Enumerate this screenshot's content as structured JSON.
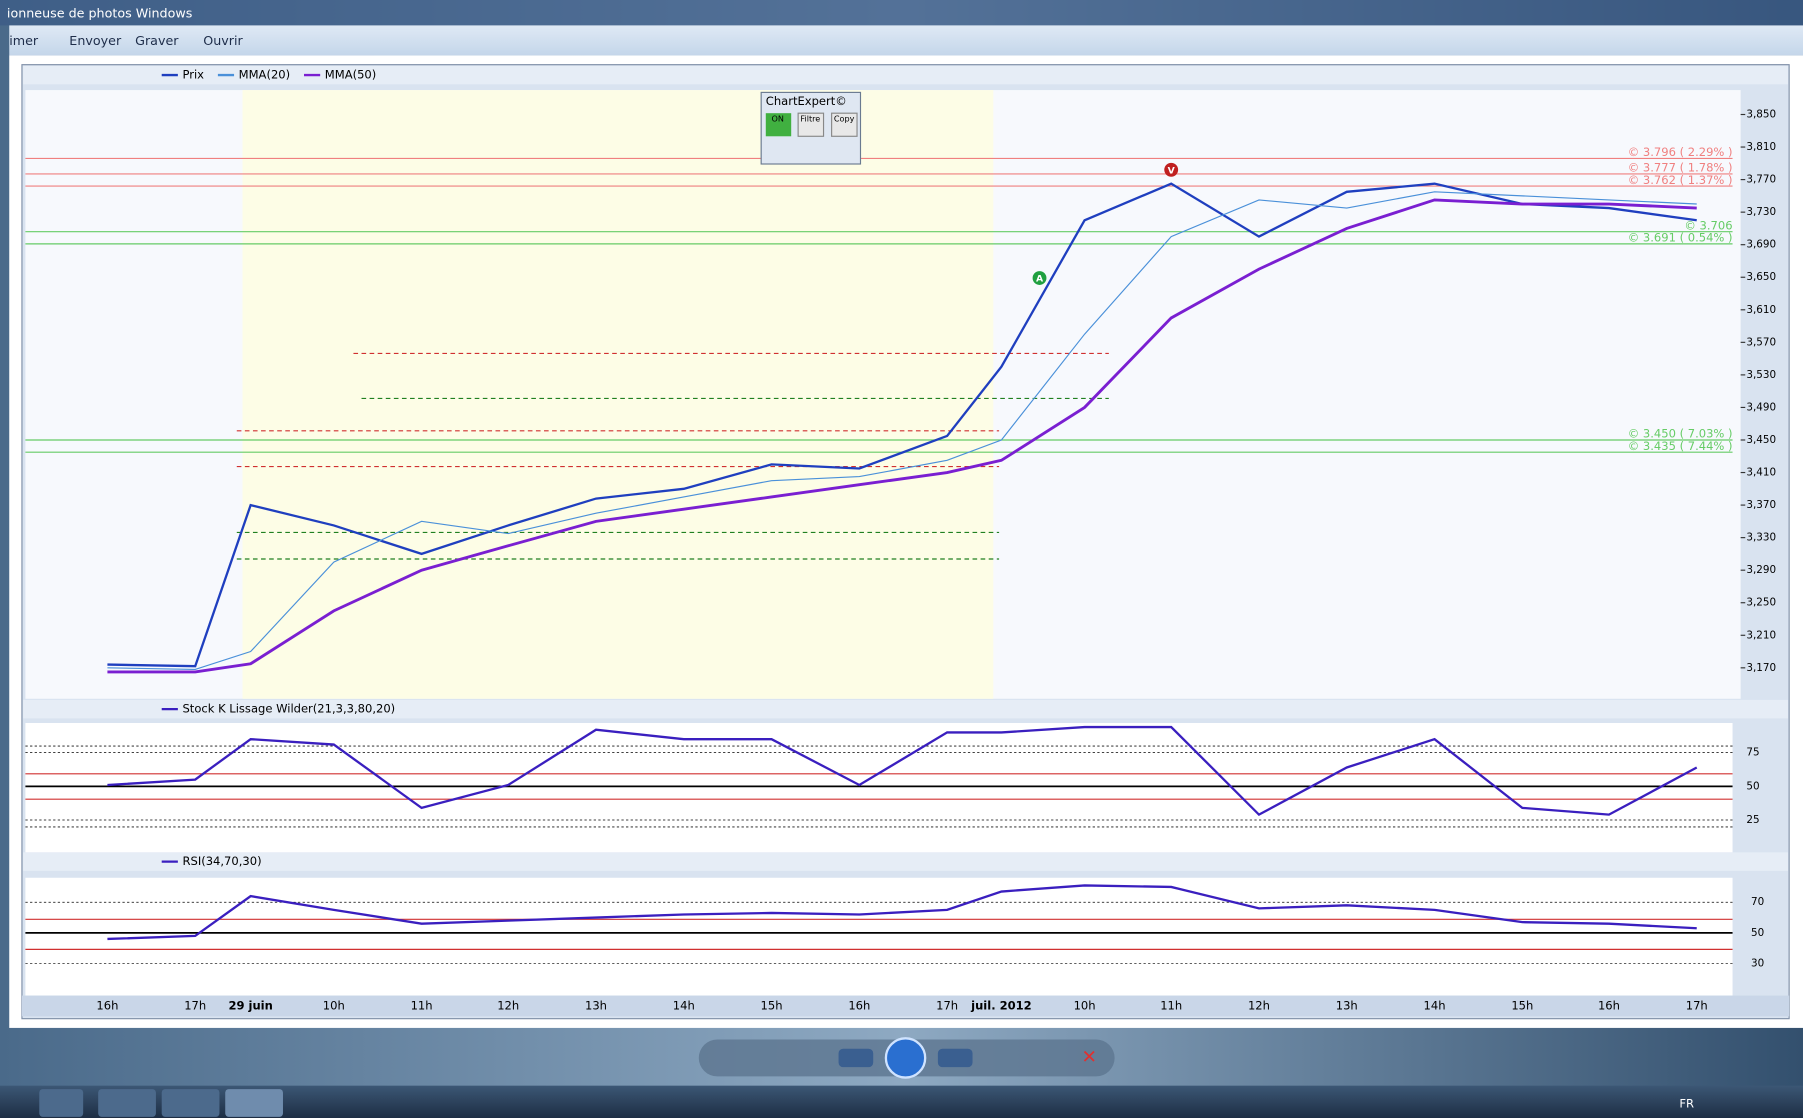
{
  "window": {
    "title": "ionneuse de photos Windows",
    "menu": [
      "imer",
      "Envoyer",
      "Graver",
      "Ouvrir"
    ],
    "chart_expert": {
      "title": "ChartExpert©",
      "buttons": [
        "ON",
        "Filtre",
        "Copy"
      ]
    },
    "taskbar": {
      "language": "FR"
    }
  },
  "chart_data": [
    {
      "type": "line",
      "grid": false,
      "series": [
        {
          "name": "Prix",
          "color": "#1f3fbf",
          "values": [
            3.174,
            3.172,
            3.37,
            3.345,
            3.31,
            3.345,
            3.378,
            3.39,
            3.42,
            3.415,
            3.455,
            3.54,
            3.72,
            3.765,
            3.7,
            3.755,
            3.765,
            3.74,
            3.735,
            3.72
          ]
        },
        {
          "name": "MMA(20)",
          "color": "#4a90d9",
          "values": [
            3.17,
            3.168,
            3.19,
            3.3,
            3.35,
            3.335,
            3.36,
            3.38,
            3.4,
            3.405,
            3.425,
            3.45,
            3.58,
            3.7,
            3.745,
            3.735,
            3.755,
            3.75,
            3.745,
            3.74
          ]
        },
        {
          "name": "MMA(50)",
          "color": "#7a1fd1",
          "values": [
            3.165,
            3.165,
            3.175,
            3.24,
            3.29,
            3.32,
            3.35,
            3.365,
            3.38,
            3.395,
            3.41,
            3.425,
            3.49,
            3.6,
            3.66,
            3.71,
            3.745,
            3.74,
            3.74,
            3.735
          ]
        }
      ],
      "ylim": [
        3.132,
        3.88
      ],
      "yticks": [
        {
          "value": 3.85,
          "label": "3,850"
        },
        {
          "value": 3.81,
          "label": "3,810"
        },
        {
          "value": 3.77,
          "label": "3,770"
        },
        {
          "value": 3.73,
          "label": "3,730"
        },
        {
          "value": 3.69,
          "label": "3,690"
        },
        {
          "value": 3.65,
          "label": "3,650"
        },
        {
          "value": 3.61,
          "label": "3,610"
        },
        {
          "value": 3.57,
          "label": "3,570"
        },
        {
          "value": 3.53,
          "label": "3,530"
        },
        {
          "value": 3.49,
          "label": "3,490"
        },
        {
          "value": 3.45,
          "label": "3,450"
        },
        {
          "value": 3.41,
          "label": "3,410"
        },
        {
          "value": 3.37,
          "label": "3,370"
        },
        {
          "value": 3.33,
          "label": "3,330"
        },
        {
          "value": 3.29,
          "label": "3,290"
        },
        {
          "value": 3.25,
          "label": "3,250"
        },
        {
          "value": 3.21,
          "label": "3,210"
        },
        {
          "value": 3.17,
          "label": "3,170"
        }
      ],
      "levels": [
        {
          "value": 3.796,
          "label": "© 3.796 ( 2.29% )",
          "color": "#f08080"
        },
        {
          "value": 3.777,
          "label": "© 3.777 ( 1.78% )",
          "color": "#f08080"
        },
        {
          "value": 3.762,
          "label": "© 3.762 ( 1.37% )",
          "color": "#f08080"
        },
        {
          "value": 3.706,
          "label": "© 3.706",
          "color": "#66cc66"
        },
        {
          "value": 3.691,
          "label": "© 3.691 ( 0.54% )",
          "color": "#66cc66"
        },
        {
          "value": 3.45,
          "label": "© 3.450 ( 7.03% )",
          "color": "#66cc66"
        },
        {
          "value": 3.435,
          "label": "© 3.435 ( 7.44% )",
          "color": "#66cc66"
        }
      ],
      "signals": [
        "V",
        "A"
      ]
    },
    {
      "type": "line",
      "grid": true,
      "series": [
        {
          "name": "Stock K Lissage Wilder(21,3,3,80,20)",
          "color": "#3a1fbf",
          "values": [
            51,
            55,
            85,
            81,
            34,
            51,
            92,
            85,
            85,
            51,
            90,
            90,
            94,
            94,
            29,
            64,
            85,
            34,
            29,
            64
          ]
        }
      ],
      "ylim": [
        1,
        97
      ],
      "yticks": [
        75,
        50,
        25
      ]
    },
    {
      "type": "line",
      "grid": true,
      "series": [
        {
          "name": "RSI(34,70,30)",
          "color": "#3a1fbf",
          "values": [
            46,
            48,
            74,
            65,
            56,
            58,
            60,
            62,
            63,
            62,
            65,
            77,
            81,
            80,
            66,
            68,
            65,
            57,
            56,
            53
          ]
        }
      ],
      "ylim": [
        9,
        86
      ],
      "yticks": [
        70,
        50,
        30
      ],
      "categories": [
        "16h",
        "17h",
        "29 juin",
        "10h",
        "11h",
        "12h",
        "13h",
        "14h",
        "15h",
        "16h",
        "17h",
        "juil. 2012",
        "10h",
        "11h",
        "12h",
        "13h",
        "14h",
        "15h",
        "16h",
        "17h"
      ]
    }
  ]
}
